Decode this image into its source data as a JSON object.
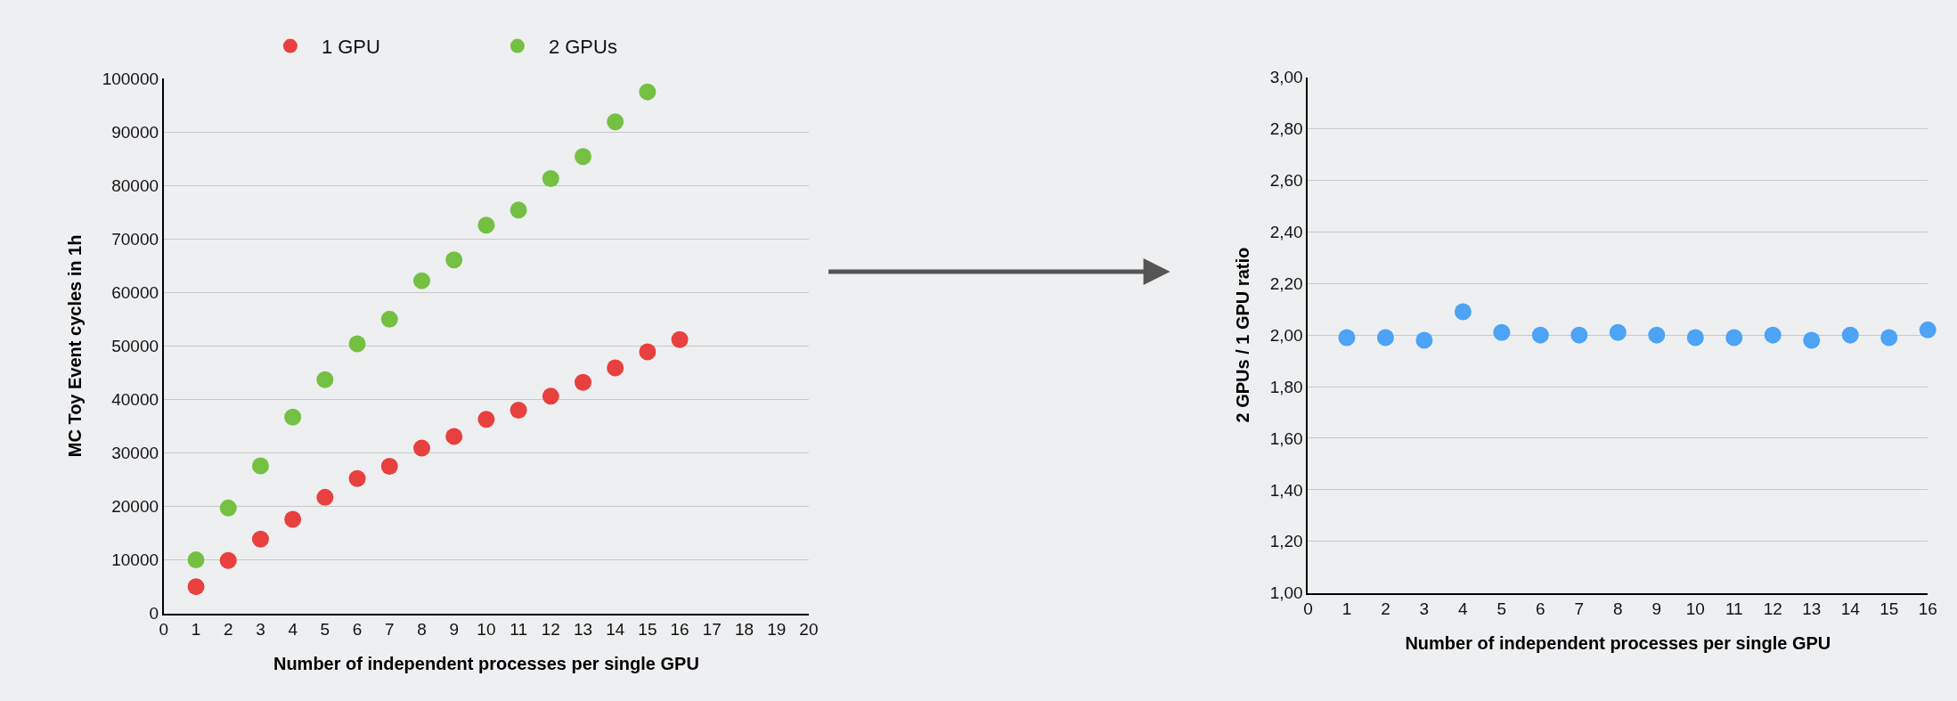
{
  "chart_data": [
    {
      "type": "scatter",
      "xlabel": "Number of independent processes per single GPU",
      "ylabel": "MC Toy Event cycles in 1h",
      "x": [
        1,
        2,
        3,
        4,
        5,
        6,
        7,
        8,
        9,
        10,
        11,
        12,
        13,
        14,
        15,
        16
      ],
      "series": [
        {
          "name": "1 GPU",
          "color": "#e8403f",
          "values": [
            5000,
            9900,
            13900,
            17600,
            21700,
            25200,
            27500,
            30900,
            33100,
            36300,
            38000,
            40600,
            43200,
            45900,
            48900,
            51200
          ]
        },
        {
          "name": "2 GPUs",
          "color": "#74c043",
          "values": [
            10000,
            19700,
            27600,
            36700,
            43700,
            50400,
            55000,
            62200,
            66100,
            72600,
            75400,
            81300,
            85400,
            91900,
            97500,
            null
          ]
        }
      ],
      "xlim": [
        0,
        20
      ],
      "xticks": [
        0,
        1,
        2,
        3,
        4,
        5,
        6,
        7,
        8,
        9,
        10,
        11,
        12,
        13,
        14,
        15,
        16,
        17,
        18,
        19,
        20
      ],
      "ylim": [
        0,
        100000
      ],
      "yticks": [
        0,
        10000,
        20000,
        30000,
        40000,
        50000,
        60000,
        70000,
        80000,
        90000,
        100000
      ],
      "grid": "y",
      "legend": "top",
      "marker": "circle"
    },
    {
      "type": "scatter",
      "xlabel": "Number of independent processes per single GPU",
      "ylabel": "2 GPUs / 1 GPU ratio",
      "x": [
        1,
        2,
        3,
        4,
        5,
        6,
        7,
        8,
        9,
        10,
        11,
        12,
        13,
        14,
        15,
        16
      ],
      "series": [
        {
          "color": "#4da3f5",
          "values": [
            1.99,
            1.99,
            1.98,
            2.09,
            2.01,
            2.0,
            2.0,
            2.01,
            2.0,
            1.99,
            1.99,
            2.0,
            1.98,
            2.0,
            1.99,
            2.02
          ]
        }
      ],
      "xlim": [
        0,
        16
      ],
      "xticks": [
        0,
        1,
        2,
        3,
        4,
        5,
        6,
        7,
        8,
        9,
        10,
        11,
        12,
        13,
        14,
        15,
        16
      ],
      "ylim": [
        1,
        3
      ],
      "yticks": [
        {
          "value": 1,
          "label": "1,00"
        },
        {
          "value": 1.2,
          "label": "1,20"
        },
        {
          "value": 1.4,
          "label": "1,40"
        },
        {
          "value": 1.6,
          "label": "1,60"
        },
        {
          "value": 1.8,
          "label": "1,80"
        },
        {
          "value": 2,
          "label": "2,00"
        },
        {
          "value": 2.2,
          "label": "2,20"
        },
        {
          "value": 2.4,
          "label": "2,40"
        },
        {
          "value": 2.6,
          "label": "2,60"
        },
        {
          "value": 2.8,
          "label": "2,80"
        },
        {
          "value": 3,
          "label": "3,00"
        }
      ],
      "grid": "y",
      "marker": "circle"
    }
  ]
}
